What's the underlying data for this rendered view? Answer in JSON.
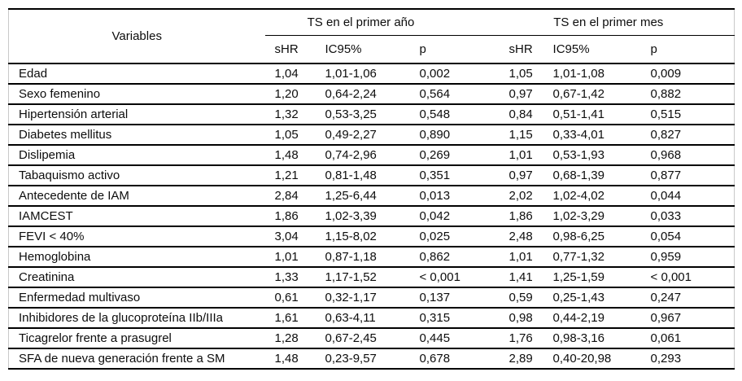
{
  "table": {
    "variables_header": "Variables",
    "group_headers": [
      "TS en el primer año",
      "TS en el primer mes"
    ],
    "sub_headers": [
      "sHR",
      "IC95%",
      "p",
      "sHR",
      "IC95%",
      "p"
    ],
    "rows": [
      {
        "variable": "Edad",
        "year_shr": "1,04",
        "year_ic95": "1,01-1,06",
        "year_p": "0,002",
        "month_shr": "1,05",
        "month_ic95": "1,01-1,08",
        "month_p": "0,009"
      },
      {
        "variable": "Sexo femenino",
        "year_shr": "1,20",
        "year_ic95": "0,64-2,24",
        "year_p": "0,564",
        "month_shr": "0,97",
        "month_ic95": "0,67-1,42",
        "month_p": "0,882"
      },
      {
        "variable": "Hipertensión arterial",
        "year_shr": "1,32",
        "year_ic95": "0,53-3,25",
        "year_p": "0,548",
        "month_shr": "0,84",
        "month_ic95": "0,51-1,41",
        "month_p": "0,515"
      },
      {
        "variable": "Diabetes mellitus",
        "year_shr": "1,05",
        "year_ic95": "0,49-2,27",
        "year_p": "0,890",
        "month_shr": "1,15",
        "month_ic95": "0,33-4,01",
        "month_p": "0,827"
      },
      {
        "variable": "Dislipemia",
        "year_shr": "1,48",
        "year_ic95": "0,74-2,96",
        "year_p": "0,269",
        "month_shr": "1,01",
        "month_ic95": "0,53-1,93",
        "month_p": "0,968"
      },
      {
        "variable": "Tabaquismo activo",
        "year_shr": "1,21",
        "year_ic95": "0,81-1,48",
        "year_p": "0,351",
        "month_shr": "0,97",
        "month_ic95": "0,68-1,39",
        "month_p": "0,877"
      },
      {
        "variable": "Antecedente de IAM",
        "year_shr": "2,84",
        "year_ic95": "1,25-6,44",
        "year_p": "0,013",
        "month_shr": "2,02",
        "month_ic95": "1,02-4,02",
        "month_p": "0,044"
      },
      {
        "variable": "IAMCEST",
        "year_shr": "1,86",
        "year_ic95": "1,02-3,39",
        "year_p": "0,042",
        "month_shr": "1,86",
        "month_ic95": "1,02-3,29",
        "month_p": "0,033"
      },
      {
        "variable": "FEVI < 40%",
        "year_shr": "3,04",
        "year_ic95": "1,15-8,02",
        "year_p": "0,025",
        "month_shr": "2,48",
        "month_ic95": "0,98-6,25",
        "month_p": "0,054"
      },
      {
        "variable": "Hemoglobina",
        "year_shr": "1,01",
        "year_ic95": "0,87-1,18",
        "year_p": "0,862",
        "month_shr": "1,01",
        "month_ic95": "0,77-1,32",
        "month_p": "0,959"
      },
      {
        "variable": "Creatinina",
        "year_shr": "1,33",
        "year_ic95": "1,17-1,52",
        "year_p": "< 0,001",
        "month_shr": "1,41",
        "month_ic95": "1,25-1,59",
        "month_p": "< 0,001"
      },
      {
        "variable": "Enfermedad multivaso",
        "year_shr": "0,61",
        "year_ic95": "0,32-1,17",
        "year_p": "0,137",
        "month_shr": "0,59",
        "month_ic95": "0,25-1,43",
        "month_p": "0,247"
      },
      {
        "variable": "Inhibidores de la glucoproteína IIb/IIIa",
        "year_shr": "1,61",
        "year_ic95": "0,63-4,11",
        "year_p": "0,315",
        "month_shr": "0,98",
        "month_ic95": "0,44-2,19",
        "month_p": "0,967"
      },
      {
        "variable": "Ticagrelor frente a prasugrel",
        "year_shr": "1,28",
        "year_ic95": "0,67-2,45",
        "year_p": "0,445",
        "month_shr": "1,76",
        "month_ic95": "0,98-3,16",
        "month_p": "0,061"
      },
      {
        "variable": "SFA de nueva generación frente a SM",
        "year_shr": "1,48",
        "year_ic95": "0,23-9,57",
        "year_p": "0,678",
        "month_shr": "2,89",
        "month_ic95": "0,40-20,98",
        "month_p": "0,293"
      }
    ]
  }
}
